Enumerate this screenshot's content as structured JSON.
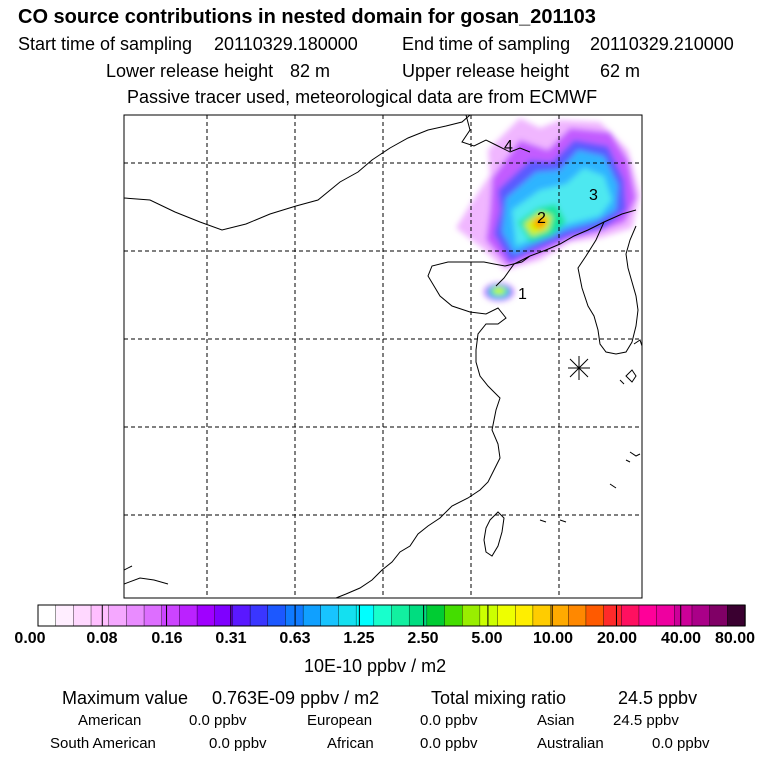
{
  "header": {
    "title": "CO  source contributions in nested domain for gosan_201103",
    "start_label": "Start time of sampling",
    "start_value": "20110329.180000",
    "end_label": "End time of sampling",
    "end_value": "20110329.210000",
    "lower_label": "Lower release height",
    "lower_value": "82 m",
    "upper_label": "Upper release height",
    "upper_value": "62 m",
    "tracer_note": "Passive tracer used, meteorological data are from ECMWF"
  },
  "map": {
    "region_labels": [
      "1",
      "2",
      "3",
      "4"
    ],
    "receptor_symbol": "receptor-star"
  },
  "colorbar": {
    "ticks": [
      "0.00",
      "0.08",
      "0.16",
      "0.31",
      "0.63",
      "1.25",
      "2.50",
      "5.00",
      "10.00",
      "20.00",
      "40.00",
      "80.00"
    ],
    "units": "10E-10 ppbv / m2",
    "colors": [
      "#ffffff",
      "#ffeeff",
      "#ffd8ff",
      "#ffbfff",
      "#f5a8ff",
      "#e98cff",
      "#dd6eff",
      "#cc44ff",
      "#bb22ff",
      "#a000ff",
      "#7f00ff",
      "#5a18ff",
      "#3a36ff",
      "#1c58ff",
      "#0f7aff",
      "#10a0ff",
      "#18c4ff",
      "#14e0f0",
      "#00ffff",
      "#18ffcc",
      "#12f0a0",
      "#00dd80",
      "#00cc33",
      "#44dd00",
      "#99ee00",
      "#ccff00",
      "#eeff00",
      "#ffee00",
      "#ffcc00",
      "#ffaa00",
      "#ff8800",
      "#ff5a00",
      "#ff2a2a",
      "#ff1060",
      "#ff0099",
      "#ee00a0",
      "#cc0099",
      "#aa0088",
      "#800066",
      "#3a0030"
    ]
  },
  "stats": {
    "max_label": "Maximum value",
    "max_value": "0.763E-09 ppbv / m2",
    "total_label": "Total mixing ratio",
    "total_value": "24.5 ppbv",
    "regions": [
      {
        "name": "American",
        "value": "0.0 ppbv"
      },
      {
        "name": "European",
        "value": "0.0 ppbv"
      },
      {
        "name": "Asian",
        "value": "24.5 ppbv"
      },
      {
        "name": "South American",
        "value": "0.0 ppbv"
      },
      {
        "name": "African",
        "value": "0.0 ppbv"
      },
      {
        "name": "Australian",
        "value": "0.0 ppbv"
      }
    ]
  }
}
